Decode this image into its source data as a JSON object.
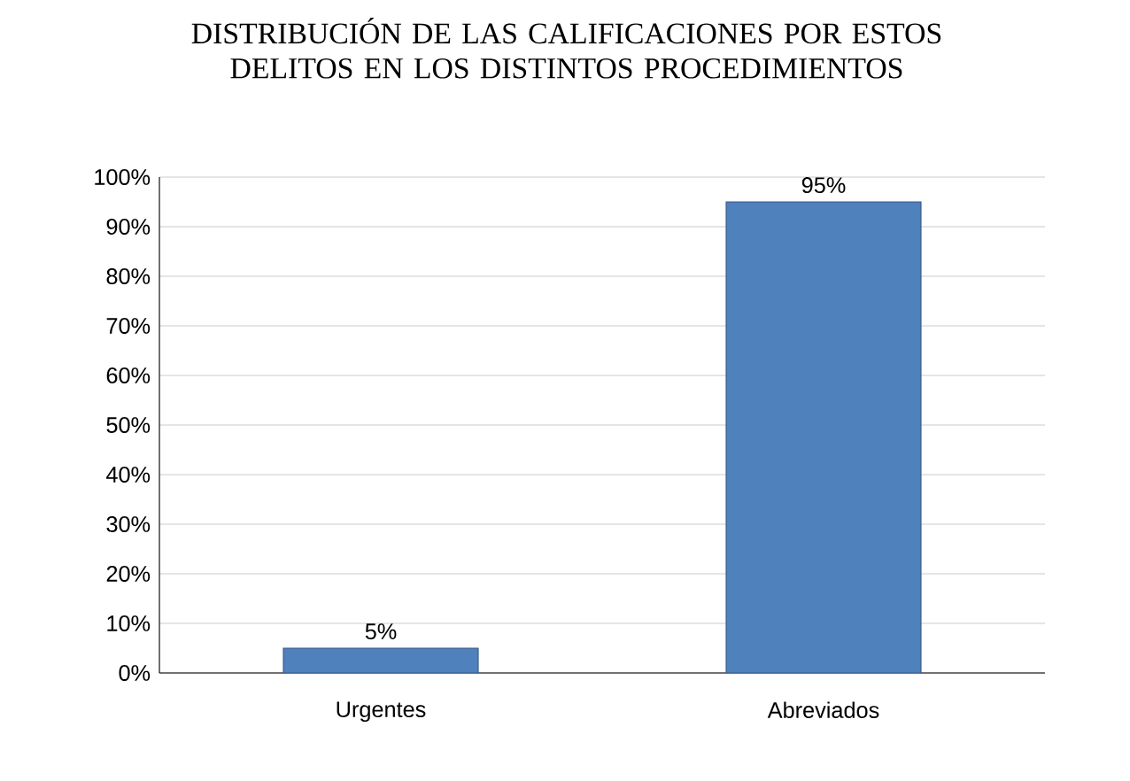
{
  "chart_data": {
    "type": "bar",
    "title": "DISTRIBUCIÓN DE LAS CALIFICACIONES POR ESTOS DELITOS EN  LOS DISTINTOS PROCEDIMIENTOS",
    "categories": [
      "Urgentes",
      "Abreviados"
    ],
    "values": [
      5,
      95
    ],
    "value_labels": [
      "5%",
      "95%"
    ],
    "color": "#4f81bd",
    "ylim": [
      0,
      100
    ],
    "yticks": [
      {
        "value": 0,
        "label": "0%"
      },
      {
        "value": 10,
        "label": "10%"
      },
      {
        "value": 20,
        "label": "20%"
      },
      {
        "value": 30,
        "label": "30%"
      },
      {
        "value": 40,
        "label": "40%"
      },
      {
        "value": 50,
        "label": "50%"
      },
      {
        "value": 60,
        "label": "60%"
      },
      {
        "value": 70,
        "label": "70%"
      },
      {
        "value": 80,
        "label": "80%"
      },
      {
        "value": 90,
        "label": "90%"
      },
      {
        "value": 100,
        "label": "100%"
      }
    ],
    "grid": "y"
  }
}
